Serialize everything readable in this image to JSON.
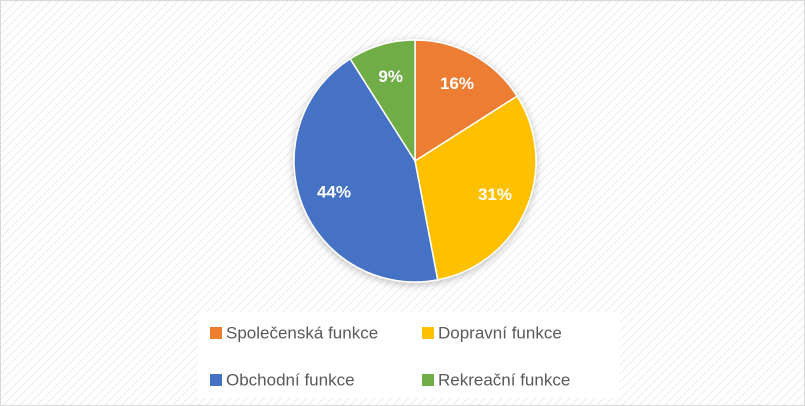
{
  "chart_data": {
    "type": "pie",
    "categories": [
      "Společenská funkce",
      "Dopravní funkce",
      "Obchodní funkce",
      "Rekreační funkce"
    ],
    "values": [
      16,
      31,
      44,
      9
    ],
    "value_labels": [
      "16%",
      "31%",
      "44%",
      "9%"
    ],
    "colors": [
      "#ED7D31",
      "#FFC000",
      "#4472C4",
      "#70AD47"
    ],
    "legend": "bottom"
  }
}
